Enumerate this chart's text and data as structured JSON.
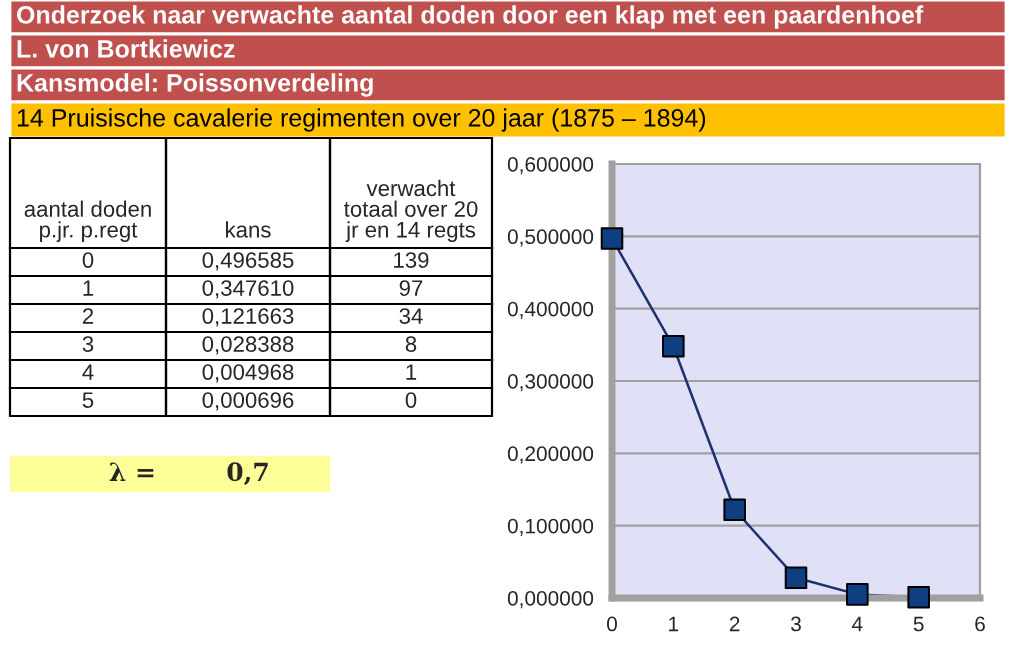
{
  "chart_data": {
    "type": "line",
    "title": "Onderzoek naar verwachte aantal doden door een klap met een paardenhoef",
    "subtitle": "L. von Bortkiewicz",
    "annotations": [
      "Kansmodel: Poissonverdeling",
      "14 Pruisische cavalerie regimenten over 20 jaar (1875 – 1894)",
      "aantal doden\np.jr. p.regt",
      "kans",
      "verwacht\ntotaal over 20\njr en 14 regts",
      "139",
      "97",
      "34",
      "8",
      "1",
      "0",
      "λ =",
      "0,7",
      "0",
      "1",
      "2",
      "3",
      "4",
      "5",
      "0,496585",
      "0,347610",
      "0,121663",
      "0,028388",
      "0,004968",
      "0,000696"
    ],
    "x": [
      0,
      1,
      2,
      3,
      4,
      5
    ],
    "series": [
      {
        "color": "#0f3f80",
        "values": [
          0.497,
          0.348,
          0.122,
          0.028,
          0.005,
          0.001
        ]
      }
    ],
    "xlim": [
      0,
      6
    ],
    "xticks": [
      0,
      1,
      2,
      3,
      4,
      5,
      6
    ],
    "ylim": [
      0,
      0.6
    ],
    "yticks": [
      {
        "value": 0,
        "label": "0,000000"
      },
      {
        "value": 0.1,
        "label": "0,100000"
      },
      {
        "value": 0.2,
        "label": "0,200000"
      },
      {
        "value": 0.3,
        "label": "0,300000"
      },
      {
        "value": 0.4,
        "label": "0,400000"
      },
      {
        "value": 0.5,
        "label": "0,500000"
      },
      {
        "value": 0.6,
        "label": "0,600000"
      }
    ],
    "grid": "y",
    "marker": "square",
    "line_style": "solid",
    "legend": false
  }
}
